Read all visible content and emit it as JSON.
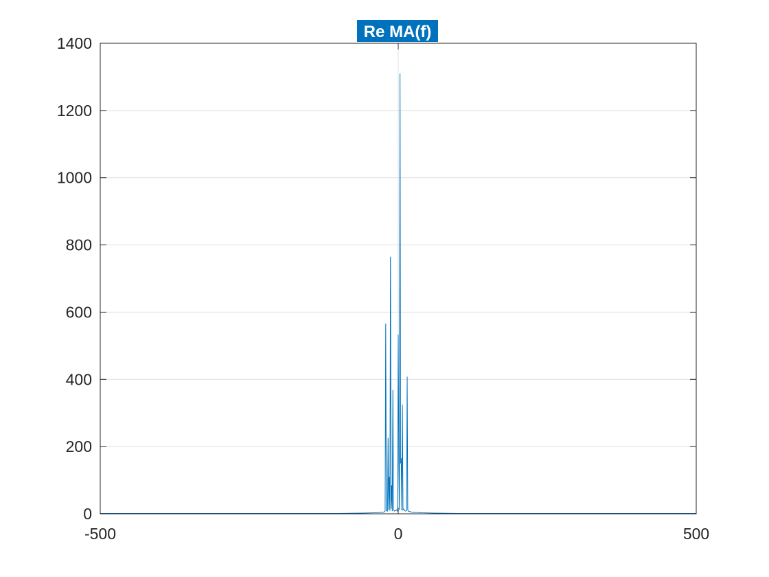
{
  "chart_data": {
    "type": "line",
    "title": "Re MA(f)",
    "xlabel": "",
    "ylabel": "",
    "xlim": [
      -500,
      500
    ],
    "ylim": [
      0,
      1400
    ],
    "xticks": [
      -500,
      0,
      500
    ],
    "yticks": [
      0,
      200,
      400,
      600,
      800,
      1000,
      1200,
      1400
    ],
    "grid": true,
    "series_color": "#0072BD",
    "title_highlight_color": "#0072BD",
    "series": [
      {
        "x": [
          -500,
          -300,
          -100,
          -60,
          -40,
          -30,
          -24,
          -22,
          -21,
          -20,
          -19,
          -18,
          -17,
          -16,
          -15,
          -14,
          -13,
          -12,
          -11,
          -10,
          -9,
          -8,
          -7,
          -6,
          -5,
          -4,
          -3,
          -2,
          -1,
          0,
          1,
          2,
          3,
          4,
          5,
          6,
          7,
          8,
          9,
          10,
          11,
          12,
          13,
          14,
          15,
          16,
          17,
          18,
          19,
          20,
          21,
          22,
          23,
          24,
          26,
          30,
          40,
          60,
          100,
          300,
          500
        ],
        "y": [
          1,
          1,
          1,
          2,
          3,
          4,
          5,
          8,
          566,
          10,
          9,
          8,
          226,
          12,
          110,
          9,
          765,
          15,
          85,
          8,
          368,
          12,
          10,
          8,
          9,
          10,
          12,
          10,
          8,
          533,
          155,
          12,
          1310,
          150,
          165,
          10,
          325,
          12,
          14,
          12,
          9,
          8,
          9,
          10,
          408,
          12,
          8,
          7,
          7,
          6,
          6,
          5,
          5,
          5,
          4,
          4,
          3,
          2,
          1,
          1,
          1
        ]
      }
    ]
  }
}
